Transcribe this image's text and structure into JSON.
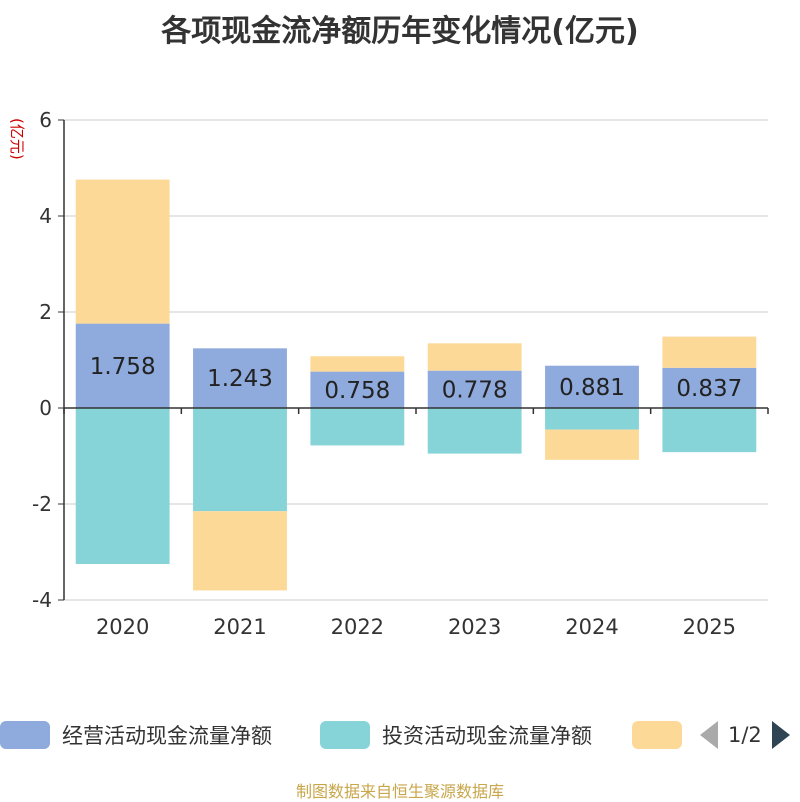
{
  "chart_data": {
    "type": "bar",
    "stacked": true,
    "title": "各项现金流净额历年变化情况(亿元)",
    "ylabel": "(亿元)",
    "xlabel": "",
    "ylim": [
      -4,
      6
    ],
    "yticks": [
      -4,
      -2,
      0,
      2,
      4,
      6
    ],
    "categories": [
      "2020",
      "2021",
      "2022",
      "2023",
      "2024",
      "2025"
    ],
    "series": [
      {
        "name": "经营活动现金流量净额",
        "color": "#8faadc",
        "values": [
          1.758,
          1.243,
          0.758,
          0.778,
          0.881,
          0.837
        ],
        "labels": [
          "1.758",
          "1.243",
          "0.758",
          "0.778",
          "0.881",
          "0.837"
        ]
      },
      {
        "name": "投资活动现金流量净额",
        "color": "#86d4d8",
        "values": [
          -3.25,
          -2.15,
          -0.78,
          -0.95,
          -0.45,
          -0.92
        ]
      },
      {
        "name": "",
        "color": "#fdd998",
        "values": [
          3.0,
          -1.65,
          0.32,
          0.57,
          -0.63,
          0.65
        ]
      }
    ],
    "legend_position": "bottom"
  },
  "legend": {
    "page_text": "1/2"
  },
  "source": "制图数据来自恒生聚源数据库"
}
